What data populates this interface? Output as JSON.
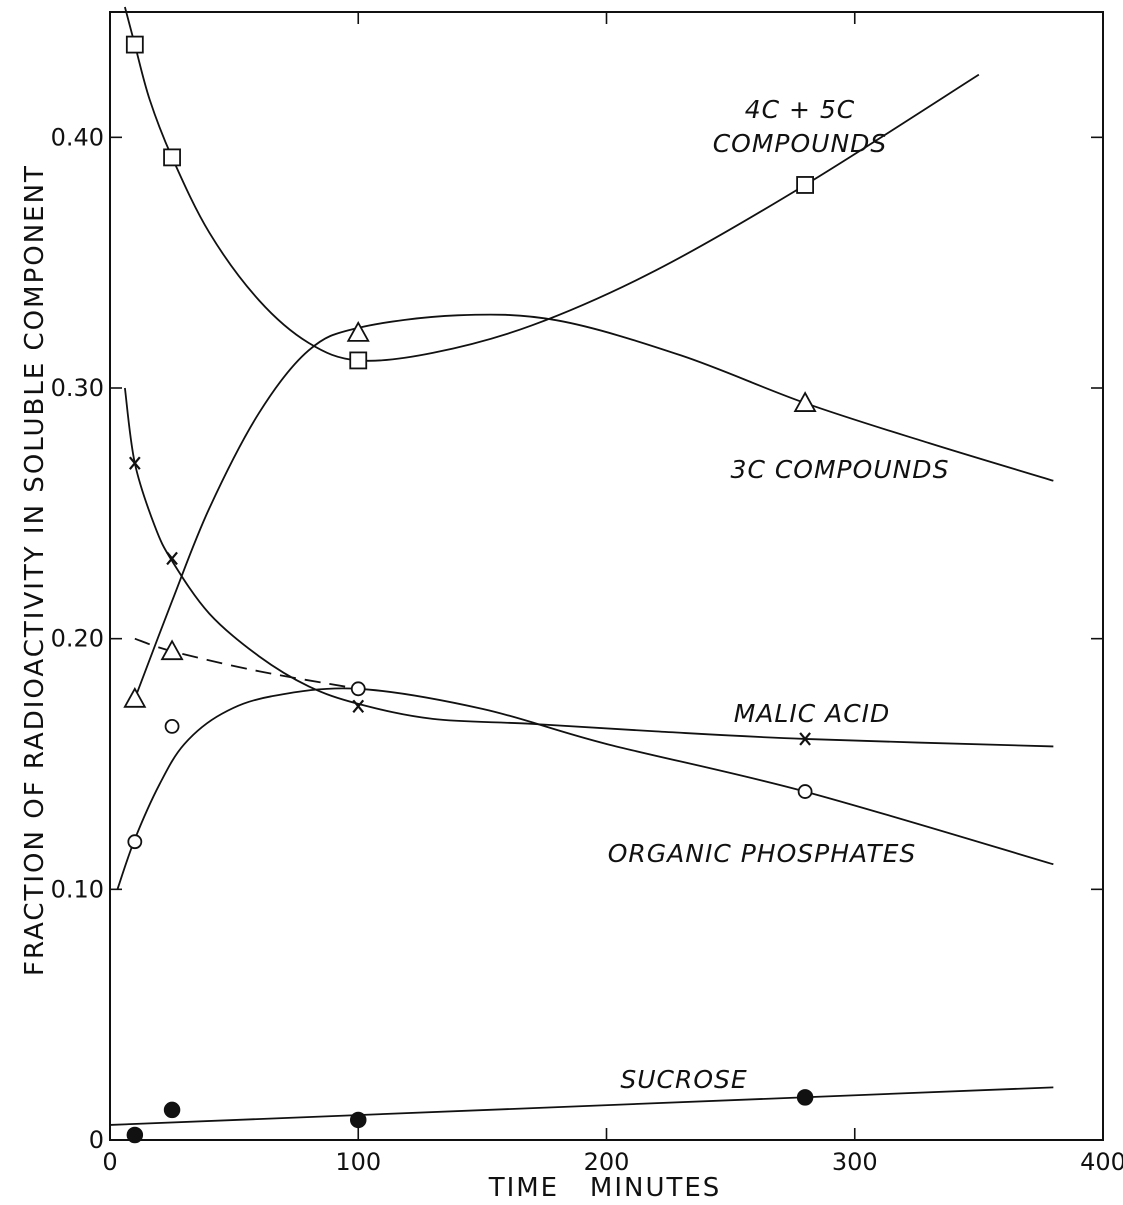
{
  "chart_data": {
    "type": "line",
    "title": "",
    "xlabel": "TIME   MINUTES",
    "ylabel": "FRACTION OF RADIOACTIVITY IN SOLUBLE COMPONENT",
    "xlim": [
      0,
      400
    ],
    "ylim": [
      0,
      0.45
    ],
    "x_ticks": [
      {
        "value": 0,
        "label": "0"
      },
      {
        "value": 100,
        "label": "100"
      },
      {
        "value": 200,
        "label": "200"
      },
      {
        "value": 300,
        "label": "300"
      },
      {
        "value": 400,
        "label": "400"
      }
    ],
    "y_ticks": [
      {
        "value": 0,
        "label": "0"
      },
      {
        "value": 0.1,
        "label": "0.10"
      },
      {
        "value": 0.2,
        "label": "0.20"
      },
      {
        "value": 0.3,
        "label": "0.30"
      },
      {
        "value": 0.4,
        "label": "0.40"
      }
    ],
    "grid": false,
    "series": [
      {
        "name": "4C + 5C COMPOUNDS",
        "label_lines": [
          "4C + 5C",
          "COMPOUNDS"
        ],
        "marker": "square",
        "points": [
          {
            "x": 10,
            "y": 0.437
          },
          {
            "x": 25,
            "y": 0.392
          },
          {
            "x": 100,
            "y": 0.311
          },
          {
            "x": 280,
            "y": 0.381
          }
        ],
        "curve": [
          [
            6,
            0.452
          ],
          [
            10,
            0.437
          ],
          [
            16,
            0.415
          ],
          [
            25,
            0.392
          ],
          [
            40,
            0.362
          ],
          [
            60,
            0.335
          ],
          [
            80,
            0.318
          ],
          [
            100,
            0.311
          ],
          [
            130,
            0.314
          ],
          [
            170,
            0.325
          ],
          [
            220,
            0.347
          ],
          [
            280,
            0.381
          ],
          [
            350,
            0.425
          ]
        ]
      },
      {
        "name": "3C COMPOUNDS",
        "label_lines": [
          "3C COMPOUNDS"
        ],
        "marker": "triangle",
        "points": [
          {
            "x": 10,
            "y": 0.176
          },
          {
            "x": 25,
            "y": 0.195
          },
          {
            "x": 100,
            "y": 0.322
          },
          {
            "x": 280,
            "y": 0.294
          }
        ],
        "curve": [
          [
            10,
            0.176
          ],
          [
            25,
            0.215
          ],
          [
            40,
            0.252
          ],
          [
            60,
            0.29
          ],
          [
            80,
            0.315
          ],
          [
            100,
            0.324
          ],
          [
            140,
            0.329
          ],
          [
            180,
            0.327
          ],
          [
            230,
            0.313
          ],
          [
            280,
            0.294
          ],
          [
            330,
            0.278
          ],
          [
            380,
            0.263
          ]
        ],
        "dashed_segment": [
          [
            10,
            0.2
          ],
          [
            25,
            0.195
          ],
          [
            60,
            0.187
          ],
          [
            100,
            0.18
          ]
        ]
      },
      {
        "name": "MALIC ACID",
        "label_lines": [
          "MALIC ACID"
        ],
        "marker": "x",
        "points": [
          {
            "x": 10,
            "y": 0.27
          },
          {
            "x": 25,
            "y": 0.232
          },
          {
            "x": 100,
            "y": 0.173
          },
          {
            "x": 280,
            "y": 0.16
          }
        ],
        "curve": [
          [
            6,
            0.3
          ],
          [
            10,
            0.27
          ],
          [
            18,
            0.245
          ],
          [
            25,
            0.231
          ],
          [
            40,
            0.21
          ],
          [
            60,
            0.193
          ],
          [
            80,
            0.181
          ],
          [
            100,
            0.174
          ],
          [
            130,
            0.168
          ],
          [
            170,
            0.166
          ],
          [
            220,
            0.163
          ],
          [
            280,
            0.16
          ],
          [
            380,
            0.157
          ]
        ]
      },
      {
        "name": "ORGANIC PHOSPHATES",
        "label_lines": [
          "ORGANIC PHOSPHATES"
        ],
        "marker": "circle",
        "points": [
          {
            "x": 10,
            "y": 0.119
          },
          {
            "x": 25,
            "y": 0.165
          },
          {
            "x": 100,
            "y": 0.18
          },
          {
            "x": 280,
            "y": 0.139
          }
        ],
        "curve": [
          [
            3,
            0.1
          ],
          [
            10,
            0.12
          ],
          [
            20,
            0.142
          ],
          [
            30,
            0.158
          ],
          [
            45,
            0.17
          ],
          [
            65,
            0.177
          ],
          [
            100,
            0.18
          ],
          [
            150,
            0.172
          ],
          [
            200,
            0.158
          ],
          [
            280,
            0.139
          ],
          [
            380,
            0.11
          ]
        ]
      },
      {
        "name": "SUCROSE",
        "label_lines": [
          "SUCROSE"
        ],
        "marker": "filled-circle",
        "points": [
          {
            "x": 10,
            "y": 0.002
          },
          {
            "x": 25,
            "y": 0.012
          },
          {
            "x": 100,
            "y": 0.008
          },
          {
            "x": 280,
            "y": 0.017
          }
        ],
        "curve": [
          [
            0,
            0.006
          ],
          [
            380,
            0.021
          ]
        ]
      }
    ]
  }
}
